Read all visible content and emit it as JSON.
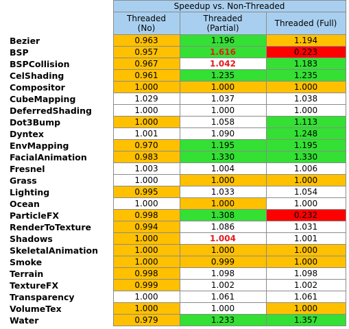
{
  "header": {
    "title": "Speedup vs. Non-Threaded",
    "columns": [
      "Threaded\n(No)",
      "Threaded\n(Partial)",
      "Threaded (Full)"
    ]
  },
  "colors": {
    "orange": "#ffc000",
    "green": "#33e033",
    "white": "#ffffff",
    "red": "#ff0000",
    "header": "#a9cff0",
    "emphasis": "#e51b1b"
  },
  "rows": [
    {
      "name": "Bezier",
      "cells": [
        "0.963",
        "1.196",
        "1.194"
      ],
      "fills": [
        "orange",
        "green",
        "orange"
      ]
    },
    {
      "name": "BSP",
      "cells": [
        "0.957",
        "1.616",
        "0.223"
      ],
      "fills": [
        "orange",
        "green",
        "red"
      ],
      "emphasis": 1
    },
    {
      "name": "BSPCollision",
      "cells": [
        "0.967",
        "1.042",
        "1.183"
      ],
      "fills": [
        "orange",
        "white",
        "green"
      ],
      "emphasis": 1
    },
    {
      "name": "CelShading",
      "cells": [
        "0.961",
        "1.235",
        "1.235"
      ],
      "fills": [
        "orange",
        "green",
        "green"
      ]
    },
    {
      "name": "Compositor",
      "cells": [
        "1.000",
        "1.000",
        "1.000"
      ],
      "fills": [
        "orange",
        "orange",
        "orange"
      ]
    },
    {
      "name": "CubeMapping",
      "cells": [
        "1.029",
        "1.037",
        "1.038"
      ],
      "fills": [
        "white",
        "white",
        "white"
      ]
    },
    {
      "name": "DeferredShading",
      "cells": [
        "1.000",
        "1.000",
        "1.000"
      ],
      "fills": [
        "white",
        "white",
        "white"
      ]
    },
    {
      "name": "Dot3Bump",
      "cells": [
        "1.000",
        "1.058",
        "1.113"
      ],
      "fills": [
        "orange",
        "white",
        "green"
      ]
    },
    {
      "name": "Dyntex",
      "cells": [
        "1.001",
        "1.090",
        "1.248"
      ],
      "fills": [
        "white",
        "white",
        "green"
      ]
    },
    {
      "name": "EnvMapping",
      "cells": [
        "0.970",
        "1.195",
        "1.195"
      ],
      "fills": [
        "orange",
        "green",
        "green"
      ]
    },
    {
      "name": "FacialAnimation",
      "cells": [
        "0.983",
        "1.330",
        "1.330"
      ],
      "fills": [
        "orange",
        "green",
        "green"
      ]
    },
    {
      "name": "Fresnel",
      "cells": [
        "1.003",
        "1.004",
        "1.006"
      ],
      "fills": [
        "white",
        "white",
        "white"
      ]
    },
    {
      "name": "Grass",
      "cells": [
        "1.000",
        "1.000",
        "1.000"
      ],
      "fills": [
        "white",
        "orange",
        "orange"
      ]
    },
    {
      "name": "Lighting",
      "cells": [
        "0.995",
        "1.033",
        "1.054"
      ],
      "fills": [
        "orange",
        "white",
        "white"
      ]
    },
    {
      "name": "Ocean",
      "cells": [
        "1.000",
        "1.000",
        "1.000"
      ],
      "fills": [
        "white",
        "orange",
        "white"
      ]
    },
    {
      "name": "ParticleFX",
      "cells": [
        "0.998",
        "1.308",
        "0.232"
      ],
      "fills": [
        "orange",
        "green",
        "red"
      ]
    },
    {
      "name": "RenderToTexture",
      "cells": [
        "0.994",
        "1.086",
        "1.031"
      ],
      "fills": [
        "orange",
        "white",
        "white"
      ]
    },
    {
      "name": "Shadows",
      "cells": [
        "1.000",
        "1.004",
        "1.001"
      ],
      "fills": [
        "orange",
        "white",
        "white"
      ],
      "emphasis": 1
    },
    {
      "name": "SkeletalAnimation",
      "cells": [
        "1.000",
        "1.000",
        "1.000"
      ],
      "fills": [
        "orange",
        "orange",
        "orange"
      ]
    },
    {
      "name": "Smoke",
      "cells": [
        "1.000",
        "0.999",
        "1.000"
      ],
      "fills": [
        "orange",
        "orange",
        "orange"
      ]
    },
    {
      "name": "Terrain",
      "cells": [
        "0.998",
        "1.098",
        "1.098"
      ],
      "fills": [
        "orange",
        "white",
        "white"
      ]
    },
    {
      "name": "TextureFX",
      "cells": [
        "0.999",
        "1.002",
        "1.002"
      ],
      "fills": [
        "orange",
        "white",
        "white"
      ]
    },
    {
      "name": "Transparency",
      "cells": [
        "1.000",
        "1.061",
        "1.061"
      ],
      "fills": [
        "white",
        "white",
        "white"
      ]
    },
    {
      "name": "VolumeTex",
      "cells": [
        "1.000",
        "1.000",
        "1.000"
      ],
      "fills": [
        "orange",
        "white",
        "orange"
      ]
    },
    {
      "name": "Water",
      "cells": [
        "0.979",
        "1.233",
        "1.357"
      ],
      "fills": [
        "orange",
        "green",
        "green"
      ]
    }
  ]
}
